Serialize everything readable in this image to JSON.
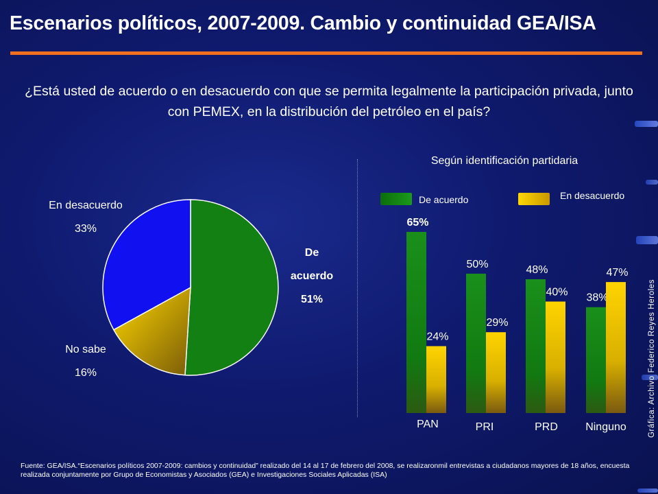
{
  "title": "Escenarios políticos, 2007-2009. Cambio y continuidad GEA/ISA",
  "question": "¿Está usted de acuerdo o en desacuerdo con que se permita legalmente la participación privada, junto con PEMEX, en la distribución del petróleo en el país?",
  "source": "Fuente: GEA/ISA.“Escenarios políticos 2007-2009: cambios y continuidad” realizado del 14 al 17 de febrero del 2008, se realizaronmil entrevistas a ciudadanos mayores de 18 años, encuesta realizada conjuntamente por Grupo de Economistas y Asociados (GEA) e Investigaciones Sociales Aplicadas (ISA)",
  "credit": "Gráfica: Archivo Federico Reyes Heroles",
  "colors": {
    "accent": "#f07020",
    "green": "#128012",
    "yellow": "#f0c800",
    "blue": "#1010f0"
  },
  "pie_labels": {
    "de_acuerdo": [
      "De",
      "acuerdo",
      "51%"
    ],
    "en_desacuerdo": [
      "En desacuerdo",
      "33%"
    ],
    "no_sabe": [
      "No sabe",
      "16%"
    ]
  },
  "bar_title": "Según identificación partidaria",
  "legend": {
    "de_acuerdo": "De acuerdo",
    "en_desacuerdo": "En desacuerdo"
  },
  "chart_data": [
    {
      "type": "pie",
      "slices": [
        {
          "label": "De acuerdo",
          "value": 51,
          "display": "51%",
          "color": "#128012"
        },
        {
          "label": "No sabe",
          "value": 16,
          "display": "16%",
          "color": "#f0c800"
        },
        {
          "label": "En desacuerdo",
          "value": 33,
          "display": "33%",
          "color": "#1010f0"
        }
      ]
    },
    {
      "type": "bar",
      "title": "Según identificación partidaria",
      "categories": [
        "PAN",
        "PRI",
        "PRD",
        "Ninguno"
      ],
      "series": [
        {
          "name": "De acuerdo",
          "values": [
            65,
            50,
            48,
            38
          ],
          "labels": [
            "65%",
            "50%",
            "48%",
            "38%"
          ],
          "color": "#128012"
        },
        {
          "name": "En desacuerdo",
          "values": [
            24,
            29,
            40,
            47
          ],
          "labels": [
            "24%",
            "29%",
            "40%",
            "47%"
          ],
          "color": "#f0c800"
        }
      ],
      "ylim": [
        0,
        70
      ],
      "grid": false,
      "legend": "top"
    }
  ]
}
